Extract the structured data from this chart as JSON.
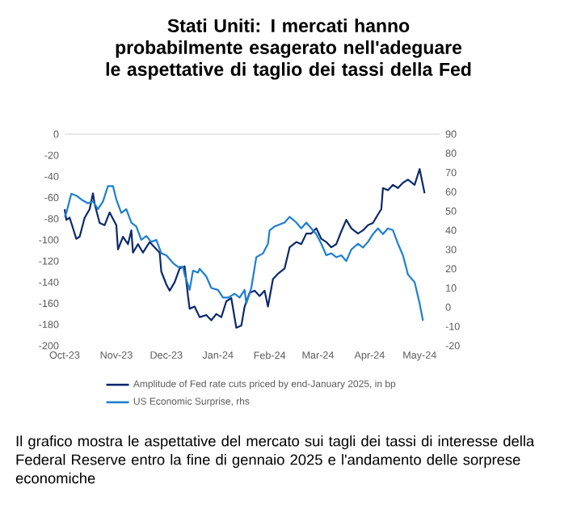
{
  "chart_data": {
    "type": "line",
    "title": "Stati Uniti: I mercati hanno probabilmente esagerato nell'adeguare le aspettative di taglio dei tassi della Fed",
    "annotations": [
      "Il grafico mostra le aspettative del mercato sui tagli dei tassi di interesse della Federal Reserve entro la fine di gennaio 2025 e l'andamento delle sorprese economiche"
    ],
    "xlim": [
      "2023-10-01",
      "2024-05-13"
    ],
    "xticks": [
      {
        "value": "2023-10-01",
        "label": "Oct-23"
      },
      {
        "value": "2023-11-01",
        "label": "Nov-23"
      },
      {
        "value": "2023-12-01",
        "label": "Dec-23"
      },
      {
        "value": "2024-01-01",
        "label": "Jan-24"
      },
      {
        "value": "2024-02-01",
        "label": "Feb-24"
      },
      {
        "value": "2024-03-01",
        "label": "Mar-24"
      },
      {
        "value": "2024-04-01",
        "label": "Apr-24"
      },
      {
        "value": "2024-05-01",
        "label": "May-24"
      }
    ],
    "ylim": [
      -200,
      0
    ],
    "yticks": [
      -200,
      -180,
      -160,
      -140,
      -120,
      -100,
      -80,
      -60,
      -40,
      -20,
      0
    ],
    "y2lim": [
      -20,
      90
    ],
    "y2ticks": [
      -20,
      -10,
      0,
      10,
      20,
      30,
      40,
      50,
      60,
      70,
      80,
      90
    ],
    "legend": "bottom",
    "grid": false,
    "marker": "none",
    "line_style": "solid",
    "series": [
      {
        "name": "Amplitude of Fed rate cuts priced by end-January 2025, in bp",
        "color": "#0b2a6b",
        "x": [
          "2023-10-01",
          "2023-10-02",
          "2023-10-04",
          "2023-10-05",
          "2023-10-08",
          "2023-10-10",
          "2023-10-13",
          "2023-10-16",
          "2023-10-18",
          "2023-10-19",
          "2023-10-22",
          "2023-10-25",
          "2023-10-28",
          "2023-11-01",
          "2023-11-02",
          "2023-11-05",
          "2023-11-08",
          "2023-11-10",
          "2023-11-11",
          "2023-11-14",
          "2023-11-17",
          "2023-11-21",
          "2023-11-24",
          "2023-11-27",
          "2023-11-28",
          "2023-12-01",
          "2023-12-03",
          "2023-12-06",
          "2023-12-09",
          "2023-12-12",
          "2023-12-14",
          "2023-12-15",
          "2023-12-18",
          "2023-12-21",
          "2023-12-25",
          "2023-12-28",
          "2023-12-31",
          "2024-01-03",
          "2024-01-06",
          "2024-01-09",
          "2024-01-12",
          "2024-01-15",
          "2024-01-17",
          "2024-01-20",
          "2024-01-23",
          "2024-01-26",
          "2024-01-29",
          "2024-01-31",
          "2024-02-03",
          "2024-02-06",
          "2024-02-10",
          "2024-02-13",
          "2024-02-17",
          "2024-02-20",
          "2024-02-23",
          "2024-02-26",
          "2024-02-29",
          "2024-03-03",
          "2024-03-06",
          "2024-03-09",
          "2024-03-12",
          "2024-03-15",
          "2024-03-18",
          "2024-03-21",
          "2024-03-25",
          "2024-03-28",
          "2024-03-31",
          "2024-04-03",
          "2024-04-06",
          "2024-04-08",
          "2024-04-09",
          "2024-04-12",
          "2024-04-15",
          "2024-04-18",
          "2024-04-21",
          "2024-04-24",
          "2024-04-28",
          "2024-05-01",
          "2024-05-04"
        ],
        "values": [
          -71,
          -81,
          -79,
          -84,
          -99,
          -97,
          -79,
          -71,
          -56,
          -66,
          -84,
          -86,
          -74,
          -86,
          -109,
          -97,
          -104,
          -91,
          -112,
          -104,
          -112,
          -102,
          -107,
          -112,
          -130,
          -142,
          -148,
          -140,
          -127,
          -125,
          -153,
          -165,
          -163,
          -173,
          -171,
          -176,
          -170,
          -173,
          -158,
          -155,
          -183,
          -181,
          -163,
          -150,
          -148,
          -153,
          -148,
          -163,
          -137,
          -132,
          -127,
          -107,
          -102,
          -104,
          -94,
          -94,
          -89,
          -99,
          -102,
          -107,
          -104,
          -92,
          -81,
          -89,
          -94,
          -91,
          -86,
          -84,
          -76,
          -71,
          -51,
          -53,
          -48,
          -51,
          -46,
          -43,
          -48,
          -33,
          -56
        ]
      },
      {
        "name": "US Economic Surprise, rhs",
        "color": "#1e7fcf",
        "axis": "y2",
        "x": [
          "2023-10-01",
          "2023-10-02",
          "2023-10-05",
          "2023-10-08",
          "2023-10-11",
          "2023-10-15",
          "2023-10-18",
          "2023-10-21",
          "2023-10-24",
          "2023-10-27",
          "2023-10-30",
          "2023-11-01",
          "2023-11-04",
          "2023-11-07",
          "2023-11-10",
          "2023-11-13",
          "2023-11-16",
          "2023-11-19",
          "2023-11-22",
          "2023-11-25",
          "2023-11-28",
          "2023-12-01",
          "2023-12-05",
          "2023-12-08",
          "2023-12-11",
          "2023-12-12",
          "2023-12-15",
          "2023-12-17",
          "2023-12-20",
          "2023-12-21",
          "2023-12-25",
          "2023-12-28",
          "2024-01-01",
          "2024-01-04",
          "2024-01-07",
          "2024-01-11",
          "2024-01-14",
          "2024-01-17",
          "2024-01-18",
          "2024-01-21",
          "2024-01-24",
          "2024-01-28",
          "2024-01-31",
          "2024-02-01",
          "2024-02-04",
          "2024-02-10",
          "2024-02-13",
          "2024-02-17",
          "2024-02-20",
          "2024-02-23",
          "2024-02-26",
          "2024-02-29",
          "2024-03-03",
          "2024-03-06",
          "2024-03-09",
          "2024-03-12",
          "2024-03-15",
          "2024-03-18",
          "2024-03-21",
          "2024-03-25",
          "2024-03-28",
          "2024-03-31",
          "2024-04-03",
          "2024-04-06",
          "2024-04-09",
          "2024-04-12",
          "2024-04-15",
          "2024-04-18",
          "2024-04-21",
          "2024-04-24",
          "2024-04-28",
          "2024-05-01",
          "2024-05-03"
        ],
        "values": [
          47,
          49,
          59,
          58,
          56,
          54,
          55,
          51,
          55,
          63,
          63,
          56,
          49,
          51,
          44,
          42,
          35,
          37,
          34,
          35,
          28,
          27,
          23,
          21,
          21,
          17,
          9,
          19,
          18,
          20,
          16,
          10,
          9,
          5,
          5,
          7,
          5,
          9,
          2,
          10,
          26,
          28,
          33,
          40,
          42,
          44,
          47,
          44,
          41,
          44,
          41,
          38,
          33,
          27,
          28,
          26,
          27,
          24,
          30,
          33,
          31,
          34,
          38,
          41,
          38,
          41,
          40,
          33,
          27,
          17,
          13,
          2,
          -7
        ]
      }
    ]
  }
}
